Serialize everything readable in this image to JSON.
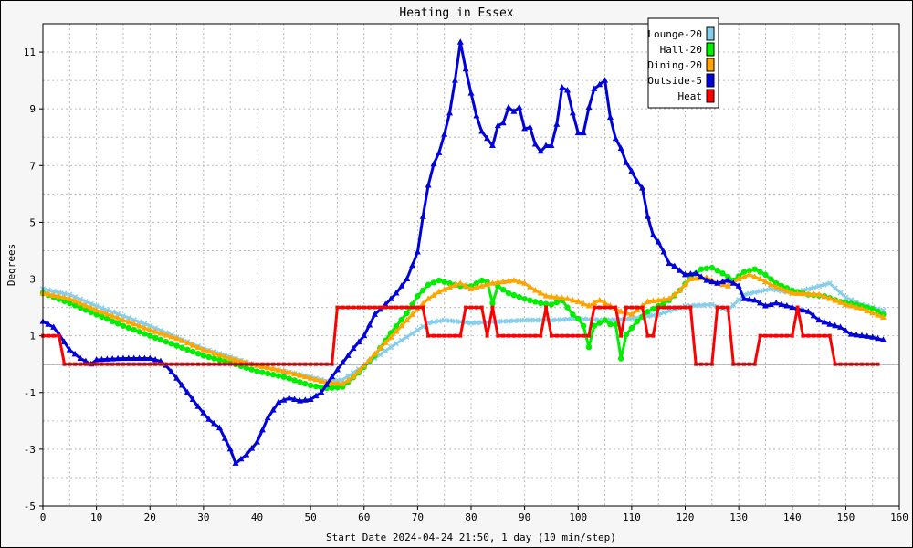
{
  "chart_data": {
    "type": "line",
    "title": "Heating in Essex",
    "xlabel": "Start Date 2024-04-24 21:50, 1 day (10 min/step)",
    "ylabel": "Degrees",
    "xlim": [
      0,
      160
    ],
    "ylim": [
      -5,
      12
    ],
    "x_ticks": [
      0,
      10,
      20,
      30,
      40,
      50,
      60,
      70,
      80,
      90,
      100,
      110,
      120,
      130,
      140,
      150,
      160
    ],
    "y_ticks": [
      -5,
      -3,
      -1,
      1,
      3,
      5,
      7,
      9,
      11
    ],
    "grid": true,
    "legend_position": "top-right",
    "zero_line": 0,
    "series": [
      {
        "name": "Lounge-20",
        "color": "#87ceeb",
        "marker": "x",
        "points": [
          [
            0,
            2.65
          ],
          [
            5,
            2.45
          ],
          [
            10,
            2.05
          ],
          [
            15,
            1.7
          ],
          [
            20,
            1.35
          ],
          [
            25,
            0.95
          ],
          [
            30,
            0.55
          ],
          [
            35,
            0.25
          ],
          [
            40,
            -0.05
          ],
          [
            45,
            -0.25
          ],
          [
            50,
            -0.45
          ],
          [
            53,
            -0.6
          ],
          [
            56,
            -0.55
          ],
          [
            60,
            -0.05
          ],
          [
            65,
            0.6
          ],
          [
            70,
            1.2
          ],
          [
            72,
            1.45
          ],
          [
            75,
            1.55
          ],
          [
            80,
            1.45
          ],
          [
            85,
            1.5
          ],
          [
            90,
            1.55
          ],
          [
            95,
            1.55
          ],
          [
            100,
            1.6
          ],
          [
            105,
            1.55
          ],
          [
            110,
            1.6
          ],
          [
            115,
            1.75
          ],
          [
            120,
            2.05
          ],
          [
            125,
            2.1
          ],
          [
            128,
            1.9
          ],
          [
            131,
            2.45
          ],
          [
            136,
            2.65
          ],
          [
            140,
            2.5
          ],
          [
            145,
            2.75
          ],
          [
            147,
            2.85
          ],
          [
            150,
            2.35
          ],
          [
            153,
            2.1
          ],
          [
            157,
            1.9
          ]
        ]
      },
      {
        "name": "Hall-20",
        "color": "#00ee00",
        "marker": "circle",
        "points": [
          [
            0,
            2.5
          ],
          [
            5,
            2.15
          ],
          [
            10,
            1.75
          ],
          [
            15,
            1.35
          ],
          [
            20,
            1.0
          ],
          [
            25,
            0.65
          ],
          [
            30,
            0.3
          ],
          [
            35,
            0.05
          ],
          [
            40,
            -0.25
          ],
          [
            45,
            -0.45
          ],
          [
            50,
            -0.75
          ],
          [
            53,
            -0.85
          ],
          [
            56,
            -0.8
          ],
          [
            59,
            -0.3
          ],
          [
            62,
            0.3
          ],
          [
            65,
            1.1
          ],
          [
            68,
            1.8
          ],
          [
            70,
            2.4
          ],
          [
            72,
            2.8
          ],
          [
            74,
            2.95
          ],
          [
            76,
            2.85
          ],
          [
            78,
            2.75
          ],
          [
            80,
            2.75
          ],
          [
            82,
            2.95
          ],
          [
            83,
            2.9
          ],
          [
            84,
            2.15
          ],
          [
            85,
            2.75
          ],
          [
            87,
            2.5
          ],
          [
            90,
            2.3
          ],
          [
            93,
            2.15
          ],
          [
            95,
            2.1
          ],
          [
            97,
            2.25
          ],
          [
            99,
            1.75
          ],
          [
            100,
            1.6
          ],
          [
            101,
            1.35
          ],
          [
            102,
            0.6
          ],
          [
            103,
            1.35
          ],
          [
            105,
            1.55
          ],
          [
            106,
            1.4
          ],
          [
            107,
            1.4
          ],
          [
            108,
            0.2
          ],
          [
            109,
            1.05
          ],
          [
            111,
            1.5
          ],
          [
            113,
            1.85
          ],
          [
            115,
            2.05
          ],
          [
            117,
            2.25
          ],
          [
            119,
            2.6
          ],
          [
            121,
            3.05
          ],
          [
            123,
            3.35
          ],
          [
            125,
            3.4
          ],
          [
            127,
            3.2
          ],
          [
            129,
            2.95
          ],
          [
            131,
            3.25
          ],
          [
            133,
            3.35
          ],
          [
            135,
            3.15
          ],
          [
            137,
            2.85
          ],
          [
            140,
            2.6
          ],
          [
            143,
            2.45
          ],
          [
            146,
            2.4
          ],
          [
            149,
            2.2
          ],
          [
            152,
            2.1
          ],
          [
            155,
            1.95
          ],
          [
            157,
            1.75
          ]
        ]
      },
      {
        "name": "Dining-20",
        "color": "#ffa500",
        "marker": "triangle",
        "points": [
          [
            0,
            2.5
          ],
          [
            5,
            2.3
          ],
          [
            10,
            1.9
          ],
          [
            15,
            1.55
          ],
          [
            20,
            1.2
          ],
          [
            25,
            0.9
          ],
          [
            30,
            0.5
          ],
          [
            35,
            0.2
          ],
          [
            40,
            -0.05
          ],
          [
            45,
            -0.25
          ],
          [
            50,
            -0.5
          ],
          [
            53,
            -0.65
          ],
          [
            56,
            -0.7
          ],
          [
            58,
            -0.45
          ],
          [
            60,
            -0.05
          ],
          [
            63,
            0.55
          ],
          [
            66,
            1.15
          ],
          [
            68,
            1.55
          ],
          [
            70,
            1.95
          ],
          [
            72,
            2.3
          ],
          [
            74,
            2.55
          ],
          [
            76,
            2.7
          ],
          [
            78,
            2.85
          ],
          [
            80,
            2.65
          ],
          [
            82,
            2.75
          ],
          [
            84,
            2.85
          ],
          [
            86,
            2.9
          ],
          [
            88,
            2.95
          ],
          [
            90,
            2.85
          ],
          [
            92,
            2.6
          ],
          [
            94,
            2.4
          ],
          [
            96,
            2.35
          ],
          [
            98,
            2.3
          ],
          [
            100,
            2.2
          ],
          [
            102,
            2.05
          ],
          [
            104,
            2.25
          ],
          [
            106,
            2.05
          ],
          [
            108,
            1.85
          ],
          [
            110,
            1.75
          ],
          [
            111,
            1.9
          ],
          [
            113,
            2.2
          ],
          [
            115,
            2.25
          ],
          [
            117,
            2.3
          ],
          [
            119,
            2.6
          ],
          [
            121,
            3.0
          ],
          [
            124,
            3.05
          ],
          [
            126,
            2.85
          ],
          [
            128,
            2.75
          ],
          [
            130,
            3.0
          ],
          [
            132,
            3.15
          ],
          [
            134,
            3.0
          ],
          [
            136,
            2.8
          ],
          [
            138,
            2.65
          ],
          [
            140,
            2.5
          ],
          [
            145,
            2.45
          ],
          [
            150,
            2.1
          ],
          [
            153,
            1.95
          ],
          [
            157,
            1.65
          ]
        ]
      },
      {
        "name": "Outside-5",
        "color": "#0000dd",
        "marker": "triangle",
        "points": [
          [
            0,
            1.5
          ],
          [
            2,
            1.3
          ],
          [
            3,
            1.05
          ],
          [
            5,
            0.5
          ],
          [
            7,
            0.2
          ],
          [
            9,
            0.0
          ],
          [
            10,
            0.15
          ],
          [
            15,
            0.2
          ],
          [
            20,
            0.2
          ],
          [
            22,
            0.1
          ],
          [
            23,
            -0.05
          ],
          [
            25,
            -0.5
          ],
          [
            27,
            -1.0
          ],
          [
            29,
            -1.5
          ],
          [
            31,
            -1.95
          ],
          [
            33,
            -2.25
          ],
          [
            35,
            -3.0
          ],
          [
            36,
            -3.5
          ],
          [
            38,
            -3.2
          ],
          [
            40,
            -2.75
          ],
          [
            42,
            -1.9
          ],
          [
            44,
            -1.35
          ],
          [
            46,
            -1.2
          ],
          [
            48,
            -1.3
          ],
          [
            50,
            -1.25
          ],
          [
            52,
            -1.0
          ],
          [
            54,
            -0.45
          ],
          [
            56,
            0.05
          ],
          [
            58,
            0.55
          ],
          [
            60,
            1.0
          ],
          [
            62,
            1.75
          ],
          [
            64,
            2.1
          ],
          [
            66,
            2.5
          ],
          [
            68,
            3.0
          ],
          [
            70,
            3.95
          ],
          [
            71,
            5.2
          ],
          [
            72,
            6.3
          ],
          [
            73,
            7.05
          ],
          [
            74,
            7.45
          ],
          [
            75,
            8.1
          ],
          [
            76,
            8.85
          ],
          [
            77,
            10.0
          ],
          [
            78,
            11.35
          ],
          [
            79,
            10.4
          ],
          [
            80,
            9.55
          ],
          [
            81,
            8.75
          ],
          [
            82,
            8.2
          ],
          [
            83,
            7.95
          ],
          [
            84,
            7.7
          ],
          [
            85,
            8.4
          ],
          [
            86,
            8.5
          ],
          [
            87,
            9.05
          ],
          [
            88,
            8.9
          ],
          [
            89,
            9.05
          ],
          [
            90,
            8.3
          ],
          [
            91,
            8.35
          ],
          [
            92,
            7.75
          ],
          [
            93,
            7.5
          ],
          [
            94,
            7.7
          ],
          [
            95,
            7.7
          ],
          [
            96,
            8.45
          ],
          [
            97,
            9.75
          ],
          [
            98,
            9.65
          ],
          [
            99,
            8.85
          ],
          [
            100,
            8.15
          ],
          [
            101,
            8.15
          ],
          [
            102,
            9.05
          ],
          [
            103,
            9.7
          ],
          [
            104,
            9.85
          ],
          [
            105,
            10.0
          ],
          [
            106,
            8.7
          ],
          [
            107,
            7.95
          ],
          [
            108,
            7.6
          ],
          [
            109,
            7.1
          ],
          [
            110,
            6.8
          ],
          [
            111,
            6.45
          ],
          [
            112,
            6.2
          ],
          [
            113,
            5.2
          ],
          [
            114,
            4.55
          ],
          [
            115,
            4.3
          ],
          [
            116,
            3.95
          ],
          [
            117,
            3.55
          ],
          [
            118,
            3.45
          ],
          [
            120,
            3.15
          ],
          [
            122,
            3.2
          ],
          [
            124,
            2.95
          ],
          [
            126,
            2.85
          ],
          [
            128,
            2.95
          ],
          [
            129,
            2.85
          ],
          [
            130,
            2.75
          ],
          [
            131,
            2.3
          ],
          [
            133,
            2.25
          ],
          [
            135,
            2.05
          ],
          [
            137,
            2.15
          ],
          [
            139,
            2.05
          ],
          [
            141,
            1.95
          ],
          [
            143,
            1.85
          ],
          [
            145,
            1.55
          ],
          [
            147,
            1.4
          ],
          [
            149,
            1.3
          ],
          [
            151,
            1.05
          ],
          [
            153,
            1.0
          ],
          [
            155,
            0.95
          ],
          [
            157,
            0.85
          ]
        ]
      },
      {
        "name": "Heat",
        "color": "#ff0000",
        "marker": "square",
        "points": [
          [
            0,
            1
          ],
          [
            3,
            1
          ],
          [
            4,
            0
          ],
          [
            54,
            0
          ],
          [
            55,
            2
          ],
          [
            71,
            2
          ],
          [
            72,
            1
          ],
          [
            78,
            1
          ],
          [
            79,
            2
          ],
          [
            82,
            2
          ],
          [
            83,
            1
          ],
          [
            84,
            2
          ],
          [
            85,
            1
          ],
          [
            93,
            1
          ],
          [
            94,
            2
          ],
          [
            95,
            1
          ],
          [
            102,
            1
          ],
          [
            103,
            2
          ],
          [
            107,
            2
          ],
          [
            108,
            1
          ],
          [
            109,
            2
          ],
          [
            112,
            2
          ],
          [
            113,
            1
          ],
          [
            114,
            1
          ],
          [
            115,
            2
          ],
          [
            121,
            2
          ],
          [
            122,
            0
          ],
          [
            125,
            0
          ],
          [
            126,
            2
          ],
          [
            128,
            2
          ],
          [
            129,
            0
          ],
          [
            133,
            0
          ],
          [
            134,
            1
          ],
          [
            140,
            1
          ],
          [
            141,
            2
          ],
          [
            142,
            1
          ],
          [
            147,
            1
          ],
          [
            148,
            0
          ],
          [
            156,
            0
          ]
        ]
      }
    ]
  }
}
